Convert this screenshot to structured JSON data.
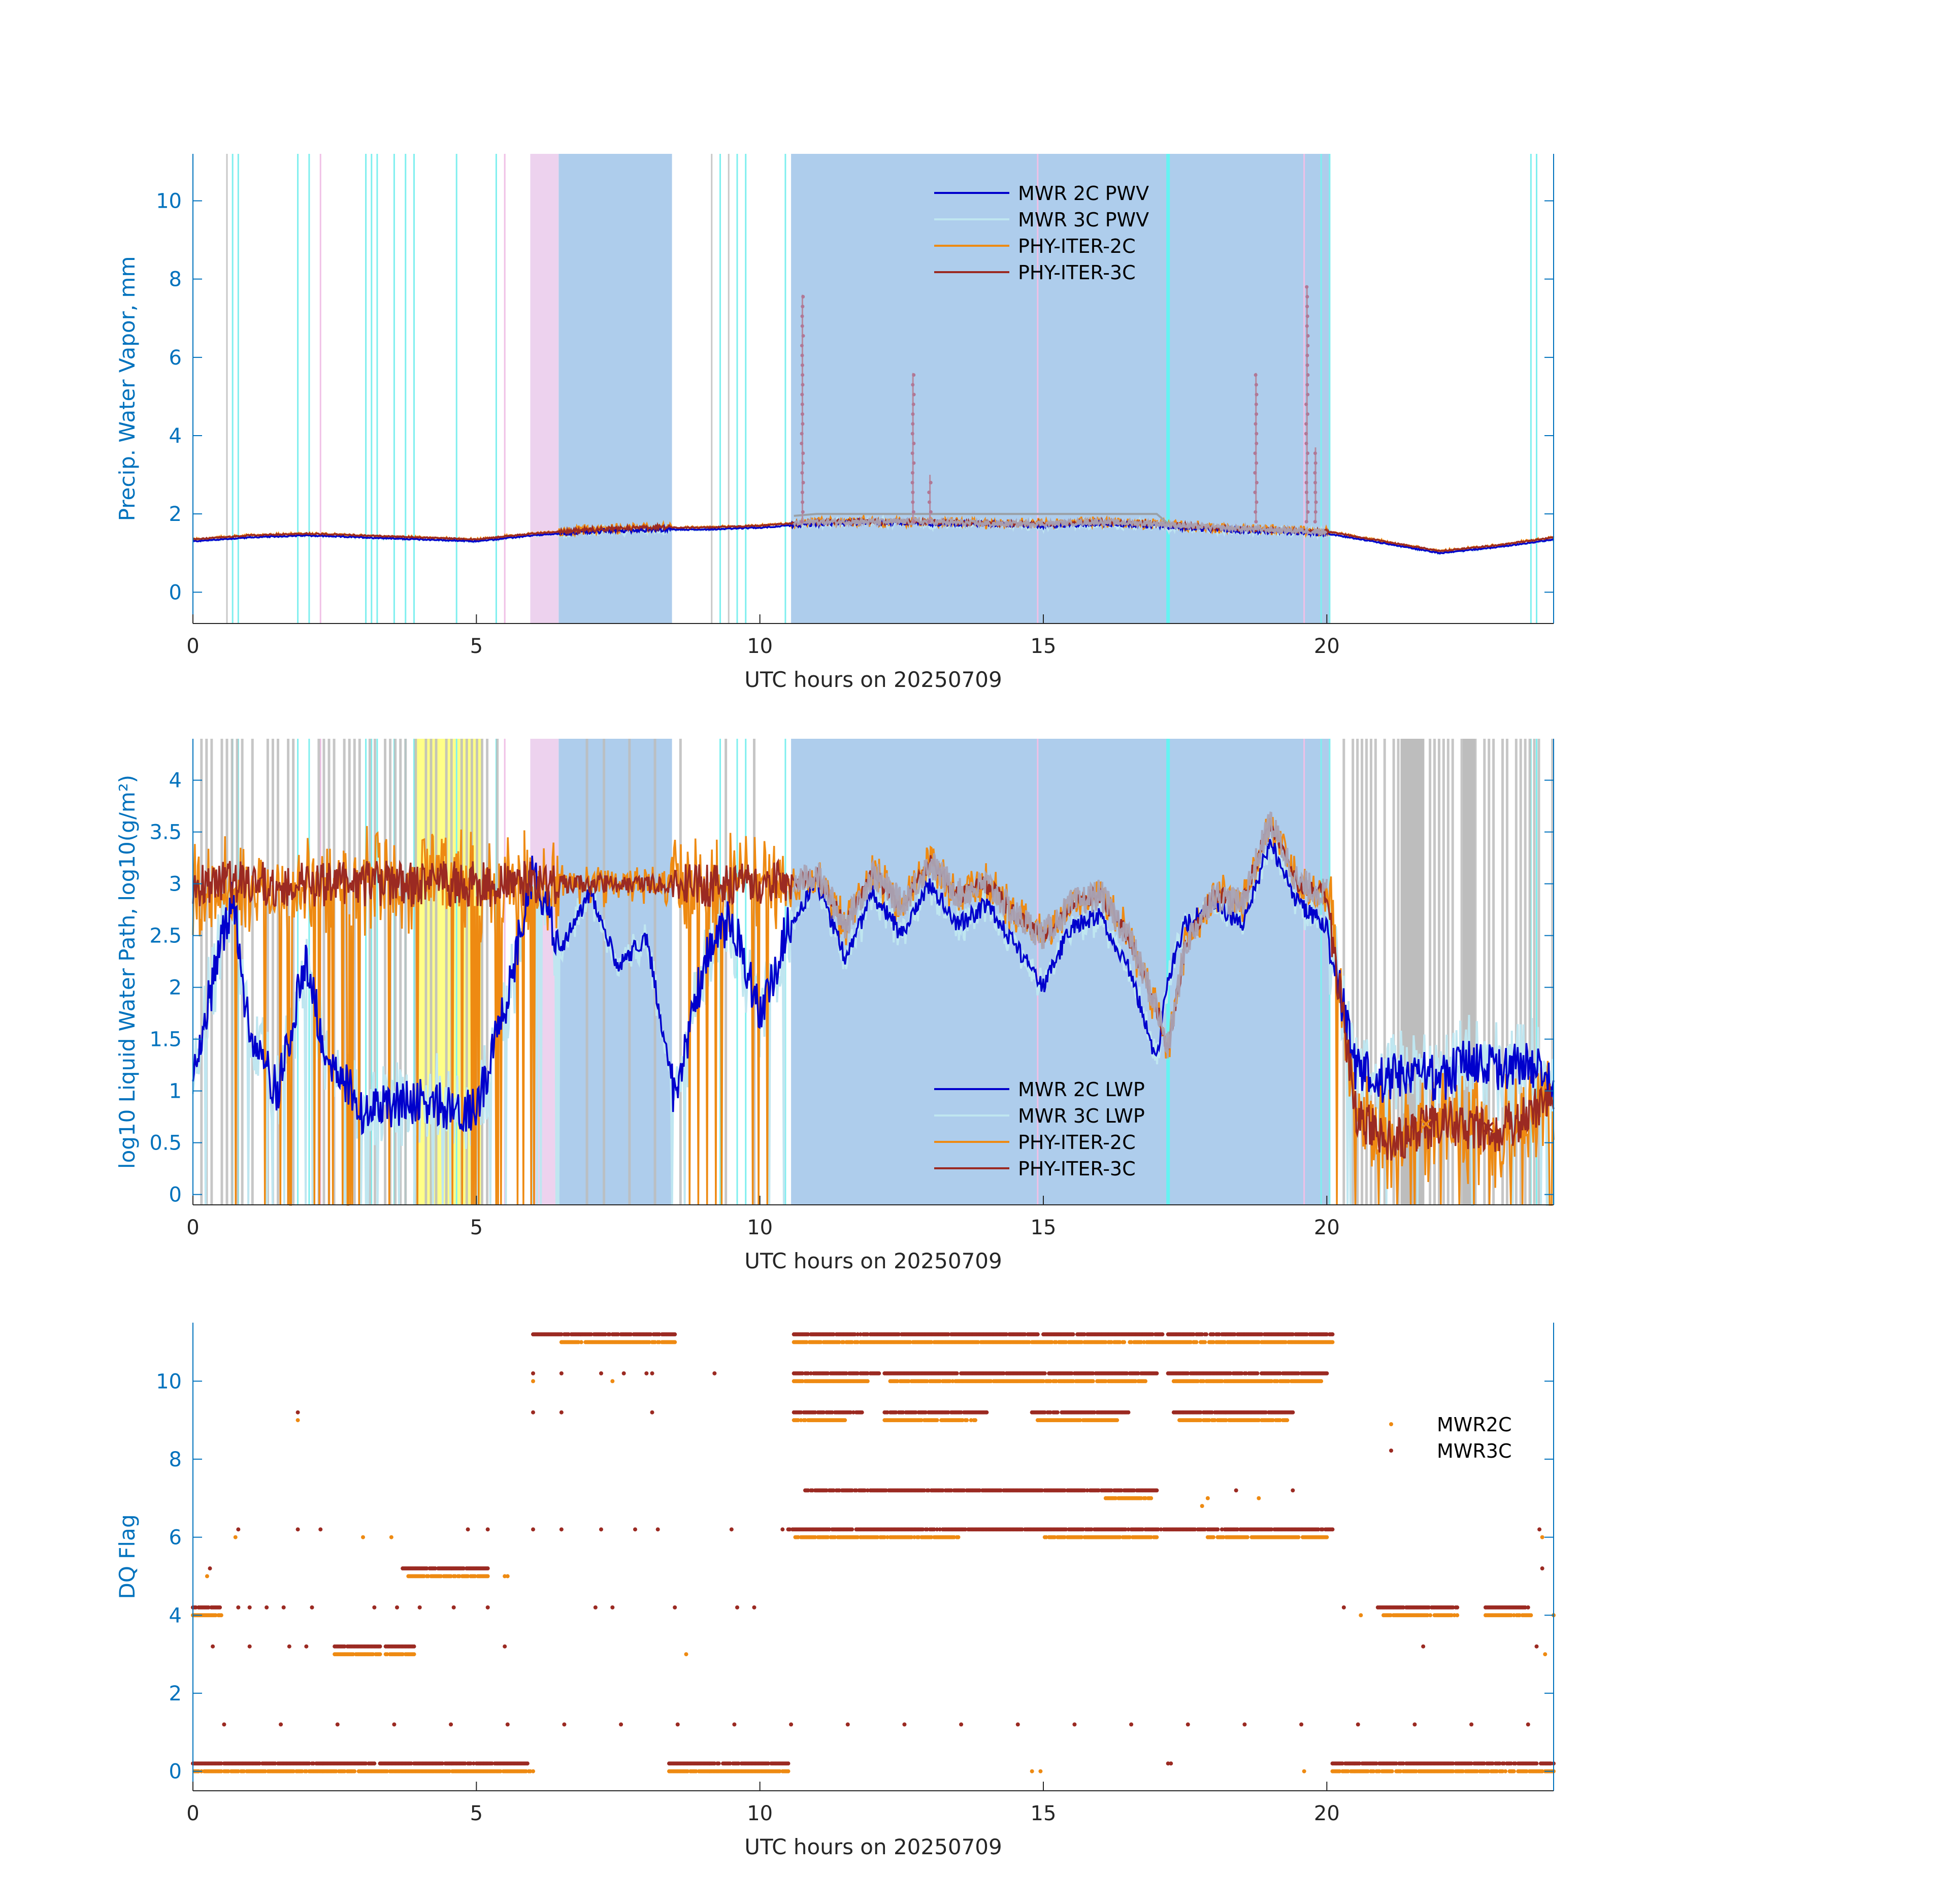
{
  "chart_data": [
    {
      "type": "line",
      "panel": "pwv",
      "xlabel": "UTC hours on 20250709",
      "ylabel": "Precip. Water Vapor, mm",
      "xlim": [
        0,
        24
      ],
      "ylim": [
        -0.8,
        11.2
      ],
      "xticks": [
        0,
        5,
        10,
        15,
        20
      ],
      "yticks": [
        0,
        2,
        4,
        6,
        8,
        10
      ],
      "legend": [
        "MWR 2C PWV",
        "MWR 3C PWV",
        "PHY-ITER-2C",
        "PHY-ITER-3C"
      ],
      "legend_position": "top-center",
      "series_colors": {
        "MWR 2C PWV": "#0000CC",
        "MWR 3C PWV": "#BFE6F0",
        "PHY-ITER-2C": "#EE8A12",
        "PHY-ITER-3C": "#9B2A22"
      },
      "shaded_blue": [
        [
          6.45,
          8.45
        ],
        [
          10.55,
          20.05
        ]
      ],
      "shaded_pink": [
        [
          5.95,
          6.45
        ]
      ],
      "series": [
        {
          "name": "MWR 2C PWV",
          "x": [
            0,
            1,
            2,
            3,
            4,
            5,
            6,
            7,
            8,
            9,
            10,
            10.5,
            11,
            12,
            13,
            14,
            15,
            16,
            17,
            18,
            19,
            20,
            21,
            22,
            23,
            24
          ],
          "values": [
            1.3,
            1.4,
            1.45,
            1.4,
            1.35,
            1.3,
            1.45,
            1.55,
            1.6,
            1.6,
            1.65,
            1.7,
            1.75,
            1.8,
            1.75,
            1.75,
            1.7,
            1.75,
            1.7,
            1.6,
            1.55,
            1.5,
            1.25,
            1.0,
            1.15,
            1.35
          ]
        },
        {
          "name": "PHY-ITER-3C",
          "x": [
            0,
            1,
            2,
            3,
            4,
            5,
            6,
            7,
            8,
            9,
            10,
            10.5,
            11,
            12,
            13,
            14,
            15,
            16,
            17,
            18,
            19,
            20,
            21,
            22,
            23,
            24
          ],
          "values": [
            1.35,
            1.45,
            1.5,
            1.45,
            1.4,
            1.35,
            1.5,
            1.6,
            1.65,
            1.65,
            1.7,
            1.75,
            1.8,
            1.8,
            1.8,
            1.75,
            1.75,
            1.8,
            1.75,
            1.65,
            1.6,
            1.55,
            1.3,
            1.05,
            1.2,
            1.4
          ]
        },
        {
          "name": "MWR 3C PWV",
          "x": [
            10.6,
            11,
            12,
            13,
            14,
            15,
            16,
            17,
            17.2
          ],
          "values": [
            1.95,
            2.0,
            2.0,
            2.0,
            2.0,
            2.0,
            2.0,
            2.0,
            1.75
          ]
        },
        {
          "name": "PHY-ITER-3C spikes",
          "x": [
            10.75,
            12.7,
            13.0,
            18.75,
            19.65,
            19.8
          ],
          "values": [
            7.6,
            5.6,
            3.0,
            5.6,
            7.8,
            3.7
          ]
        }
      ]
    },
    {
      "type": "line",
      "panel": "lwp",
      "xlabel": "UTC hours on 20250709",
      "ylabel": "log10 Liquid Water Path, log10(g/m²)",
      "xlim": [
        0,
        24
      ],
      "ylim": [
        -0.1,
        4.4
      ],
      "xticks": [
        0,
        5,
        10,
        15,
        20
      ],
      "yticks": [
        0,
        0.5,
        1,
        1.5,
        2,
        2.5,
        3,
        3.5,
        4
      ],
      "legend": [
        "MWR 2C LWP",
        "MWR 3C LWP",
        "PHY-ITER-2C",
        "PHY-ITER-3C"
      ],
      "legend_position": "bottom-center",
      "series_colors": {
        "MWR 2C LWP": "#0000CC",
        "MWR 3C LWP": "#BFE6F0",
        "PHY-ITER-2C": "#EE8A12",
        "PHY-ITER-3C": "#9B2A22"
      },
      "shaded_blue": [
        [
          6.45,
          8.45
        ],
        [
          10.55,
          20.05
        ]
      ],
      "shaded_pink": [
        [
          5.95,
          6.45
        ]
      ],
      "shaded_yellow": [
        [
          3.9,
          5.1
        ]
      ],
      "series": [
        {
          "name": "MWR 2C LWP",
          "x": [
            0,
            0.7,
            1.0,
            1.5,
            2.0,
            2.3,
            3,
            4,
            5,
            5.5,
            6.0,
            6.5,
            7,
            7.5,
            8,
            8.5,
            9,
            9.5,
            10,
            10.5,
            11,
            11.5,
            12,
            12.5,
            13,
            13.5,
            14,
            14.5,
            15,
            15.5,
            16,
            16.5,
            17,
            17.2,
            17.5,
            18,
            18.5,
            19,
            19.5,
            20,
            20.5,
            21,
            21.5,
            22,
            22.5,
            23,
            23.5,
            24
          ],
          "values": [
            1.2,
            2.9,
            1.5,
            1.0,
            2.3,
            1.4,
            0.8,
            0.9,
            0.8,
            1.8,
            3.1,
            2.4,
            2.9,
            2.2,
            2.5,
            0.9,
            2.2,
            2.7,
            1.7,
            2.6,
            3.0,
            2.3,
            2.9,
            2.5,
            3.0,
            2.6,
            2.8,
            2.4,
            2.0,
            2.6,
            2.7,
            2.2,
            1.3,
            2.1,
            2.6,
            2.8,
            2.6,
            3.4,
            2.8,
            2.6,
            1.2,
            1.1,
            1.2,
            1.1,
            1.3,
            1.2,
            1.3,
            1.1
          ]
        },
        {
          "name": "MWR 3C LWP",
          "x": [
            10.6,
            11,
            11.5,
            12,
            12.5,
            13,
            13.5,
            14,
            14.5,
            15,
            15.5,
            16,
            16.5,
            17,
            17.2,
            17.5,
            18,
            18.5,
            19,
            19.5,
            20,
            20.5,
            21,
            22,
            23,
            24
          ],
          "values": [
            3.0,
            3.1,
            2.6,
            3.1,
            2.8,
            3.2,
            2.9,
            3.0,
            2.7,
            2.5,
            2.8,
            2.9,
            2.5,
            1.8,
            1.4,
            2.4,
            2.9,
            2.8,
            3.6,
            3.0,
            2.9,
            0.8,
            0.5,
            0.7,
            0.6,
            0.9
          ]
        }
      ],
      "markers": [
        {
          "series": "PHY-ITER-2C",
          "x": 21.75,
          "y": 0.68,
          "symbol": "x"
        },
        {
          "series": "PHY-ITER-3C",
          "x": 22.85,
          "y": 0.65,
          "symbol": "x"
        }
      ]
    },
    {
      "type": "scatter",
      "panel": "dqflag",
      "xlabel": "UTC hours on 20250709",
      "ylabel": "DQ Flag",
      "xlim": [
        0,
        24
      ],
      "ylim": [
        -0.5,
        11.5
      ],
      "xticks": [
        0,
        5,
        10,
        15,
        20
      ],
      "yticks": [
        0,
        2,
        4,
        6,
        8,
        10
      ],
      "legend": [
        "MWR2C",
        "MWR3C"
      ],
      "legend_position": "right",
      "series_colors": {
        "MWR2C": "#EE8A12",
        "MWR3C": "#9B2A22"
      },
      "series": [
        {
          "name": "MWR3C",
          "flag": 11.2,
          "ranges": [
            [
              6.0,
              8.5
            ],
            [
              10.6,
              14.9
            ],
            [
              15.0,
              17.1
            ],
            [
              17.2,
              20.1
            ]
          ]
        },
        {
          "name": "MWR2C",
          "flag": 11.0,
          "ranges": [
            [
              6.5,
              8.5
            ],
            [
              10.6,
              20.1
            ]
          ]
        },
        {
          "name": "MWR3C",
          "flag": 10.2,
          "ranges": [
            [
              10.6,
              12.1
            ],
            [
              12.2,
              17.0
            ],
            [
              17.2,
              20.0
            ]
          ]
        },
        {
          "name": "MWR2C",
          "flag": 10.0,
          "ranges": [
            [
              10.6,
              11.9
            ],
            [
              12.3,
              16.8
            ],
            [
              17.3,
              19.9
            ]
          ]
        },
        {
          "name": "MWR3C",
          "flag": 9.2,
          "ranges": [
            [
              10.6,
              11.8
            ],
            [
              12.2,
              14.0
            ],
            [
              14.8,
              16.5
            ],
            [
              17.3,
              19.4
            ]
          ]
        },
        {
          "name": "MWR2C",
          "flag": 9.0,
          "ranges": [
            [
              10.6,
              11.5
            ],
            [
              12.2,
              13.8
            ],
            [
              14.9,
              16.3
            ],
            [
              17.4,
              19.3
            ]
          ]
        },
        {
          "name": "MWR3C",
          "flag": 7.2,
          "ranges": [
            [
              10.8,
              17.0
            ]
          ]
        },
        {
          "name": "MWR2C",
          "flag": 7.0,
          "ranges": [
            [
              16.1,
              16.9
            ]
          ]
        },
        {
          "name": "MWR3C",
          "flag": 6.2,
          "ranges": [
            [
              10.5,
              20.1
            ]
          ]
        },
        {
          "name": "MWR2C",
          "flag": 6.0,
          "ranges": [
            [
              10.6,
              13.5
            ],
            [
              15.0,
              17.0
            ],
            [
              17.9,
              20.0
            ]
          ]
        },
        {
          "name": "MWR3C",
          "flag": 5.2,
          "ranges": [
            [
              3.7,
              5.2
            ]
          ]
        },
        {
          "name": "MWR2C",
          "flag": 5.0,
          "ranges": [
            [
              3.8,
              5.2
            ]
          ]
        },
        {
          "name": "MWR3C",
          "flag": 4.2,
          "ranges": [
            [
              0.0,
              0.5
            ],
            [
              20.9,
              22.3
            ],
            [
              22.8,
              23.6
            ]
          ]
        },
        {
          "name": "MWR2C",
          "flag": 4.0,
          "ranges": [
            [
              0.0,
              0.5
            ],
            [
              21.0,
              22.3
            ],
            [
              22.8,
              23.6
            ]
          ]
        },
        {
          "name": "MWR3C",
          "flag": 3.2,
          "ranges": [
            [
              2.5,
              3.3
            ],
            [
              3.4,
              3.9
            ]
          ]
        },
        {
          "name": "MWR2C",
          "flag": 3.0,
          "ranges": [
            [
              2.5,
              3.3
            ],
            [
              3.4,
              3.9
            ]
          ]
        },
        {
          "name": "MWR3C",
          "flag": 0.2,
          "ranges": [
            [
              0.0,
              5.9
            ],
            [
              8.4,
              10.5
            ],
            [
              20.1,
              24.0
            ]
          ]
        },
        {
          "name": "MWR2C",
          "flag": 0.0,
          "ranges": [
            [
              0.0,
              6.0
            ],
            [
              8.4,
              10.5
            ],
            [
              20.1,
              24.0
            ]
          ]
        }
      ]
    }
  ]
}
